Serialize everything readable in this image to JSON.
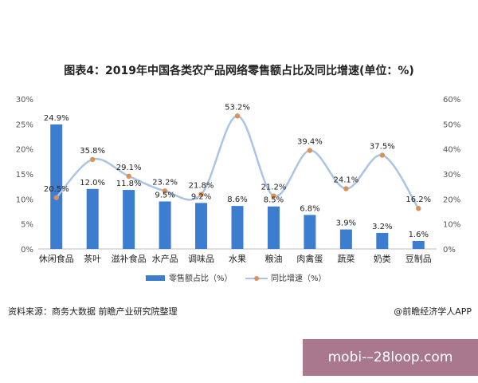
{
  "chart_data": {
    "type": "bar",
    "title": "图表4：2019年中国各类农产品网络零售额占比及同比增速(单位：%)",
    "categories": [
      "休闲食品",
      "茶叶",
      "滋补食品",
      "水产品",
      "调味品",
      "水果",
      "粮油",
      "肉禽蛋",
      "蔬菜",
      "奶类",
      "豆制品"
    ],
    "series": [
      {
        "name": "零售额占比（%）",
        "type": "bar",
        "axis": "left",
        "color": "#3d7dd0",
        "values": [
          24.9,
          12.0,
          11.8,
          9.5,
          9.2,
          8.6,
          8.5,
          6.8,
          3.9,
          3.2,
          1.6
        ],
        "labels": [
          "24.9%",
          "12.0%",
          "11.8%",
          "9.5%",
          "9.2%",
          "8.6%",
          "8.5%",
          "6.8%",
          "3.9%",
          "3.2%",
          "1.6%"
        ]
      },
      {
        "name": "同比增速（%）",
        "type": "line",
        "axis": "right",
        "color": "#a9c4e6",
        "marker_color": "#d8925a",
        "values": [
          20.5,
          35.8,
          29.1,
          23.2,
          21.8,
          53.2,
          21.2,
          39.4,
          24.1,
          37.5,
          16.2
        ],
        "labels": [
          "20.5%",
          "35.8%",
          "29.1%",
          "23.2%",
          "21.8%",
          "53.2%",
          "21.2%",
          "39.4%",
          "24.1%",
          "37.5%",
          "16.2%"
        ]
      }
    ],
    "y_left": {
      "min": 0,
      "max": 30,
      "ticks": [
        "0%",
        "5%",
        "10%",
        "15%",
        "20%",
        "25%",
        "30%"
      ]
    },
    "y_right": {
      "min": 0,
      "max": 60,
      "ticks": [
        "0%",
        "10%",
        "20%",
        "30%",
        "40%",
        "50%",
        "60%"
      ]
    },
    "grid": false,
    "legend": "bottom"
  },
  "footer": {
    "source": "资料来源：商务大数据 前瞻产业研究院整理",
    "credit": "@前瞻经济学人APP"
  },
  "watermark": {
    "text": "mobi-–28loop.com",
    "color": "#a9788f"
  }
}
